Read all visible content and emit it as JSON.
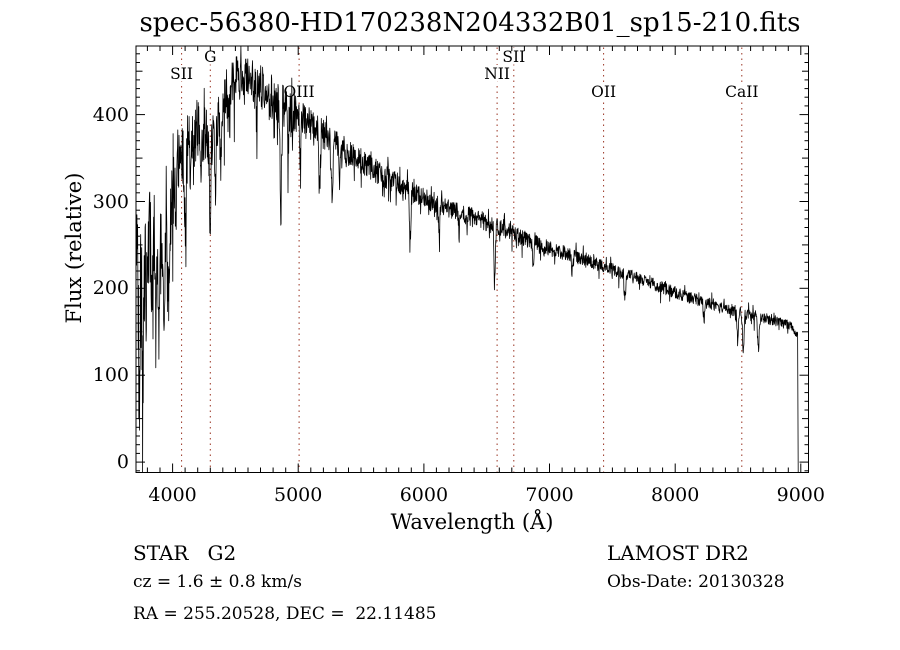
{
  "chart_data": {
    "type": "line",
    "title": "spec-56380-HD170238N204332B01_sp15-210.fits",
    "xlabel": "Wavelength (Å)",
    "ylabel": "Flux (relative)",
    "xlim": [
      3709,
      9061
    ],
    "ylim": [
      -12,
      479
    ],
    "grid": false,
    "legend": "none",
    "x_ticks": {
      "major": [
        4000,
        5000,
        6000,
        7000,
        8000,
        9000
      ],
      "minor_step": 100,
      "labels": [
        "4000",
        "5000",
        "6000",
        "7000",
        "8000",
        "9000"
      ]
    },
    "y_ticks": {
      "major": [
        0,
        100,
        200,
        300,
        400
      ],
      "mid_step": 50,
      "minor_step": 10,
      "labels": [
        "0",
        "100",
        "200",
        "300",
        "400"
      ]
    },
    "series": [
      {
        "name": "spectrum",
        "color": "#000000"
      }
    ],
    "line_markers": [
      {
        "label": "SII",
        "wavelength": 4072,
        "row": 1
      },
      {
        "label": "G",
        "wavelength": 4300,
        "row": 0
      },
      {
        "label": "OIII",
        "wavelength": 5007,
        "row": 2
      },
      {
        "label": "NII",
        "wavelength": 6583,
        "row": 1
      },
      {
        "label": "SII",
        "wavelength": 6716,
        "row": 0
      },
      {
        "label": "OII",
        "wavelength": 7430,
        "row": 2
      },
      {
        "label": "CaII",
        "wavelength": 8530,
        "row": 2
      }
    ],
    "spectrum": {
      "sample_step": 2.5,
      "seed": 20130328,
      "cutoff_wavelength": 8976,
      "continuum": [
        [
          3709,
          238
        ],
        [
          3722,
          212
        ],
        [
          3738,
          198
        ],
        [
          3755,
          205
        ],
        [
          3775,
          215
        ],
        [
          3800,
          242
        ],
        [
          3825,
          260
        ],
        [
          3850,
          268
        ],
        [
          3875,
          262
        ],
        [
          3900,
          258
        ],
        [
          3930,
          265
        ],
        [
          3960,
          275
        ],
        [
          3990,
          300
        ],
        [
          4020,
          328
        ],
        [
          4050,
          348
        ],
        [
          4080,
          352
        ],
        [
          4110,
          360
        ],
        [
          4140,
          370
        ],
        [
          4170,
          376
        ],
        [
          4200,
          379
        ],
        [
          4240,
          377
        ],
        [
          4280,
          381
        ],
        [
          4320,
          390
        ],
        [
          4360,
          400
        ],
        [
          4400,
          408
        ],
        [
          4440,
          424
        ],
        [
          4480,
          438
        ],
        [
          4520,
          447
        ],
        [
          4560,
          446
        ],
        [
          4610,
          441
        ],
        [
          4660,
          436
        ],
        [
          4710,
          431
        ],
        [
          4760,
          423
        ],
        [
          4810,
          417
        ],
        [
          4870,
          411
        ],
        [
          4930,
          405
        ],
        [
          4990,
          401
        ],
        [
          5050,
          393
        ],
        [
          5110,
          386
        ],
        [
          5170,
          380
        ],
        [
          5230,
          374
        ],
        [
          5290,
          367
        ],
        [
          5360,
          361
        ],
        [
          5430,
          353
        ],
        [
          5510,
          345
        ],
        [
          5590,
          338
        ],
        [
          5670,
          330
        ],
        [
          5750,
          323
        ],
        [
          5830,
          317
        ],
        [
          5910,
          310
        ],
        [
          6010,
          304
        ],
        [
          6110,
          297
        ],
        [
          6210,
          292
        ],
        [
          6310,
          286
        ],
        [
          6410,
          281
        ],
        [
          6510,
          275
        ],
        [
          6610,
          269
        ],
        [
          6710,
          263
        ],
        [
          6810,
          257
        ],
        [
          6910,
          251
        ],
        [
          7010,
          246
        ],
        [
          7110,
          241
        ],
        [
          7210,
          236
        ],
        [
          7310,
          231
        ],
        [
          7410,
          226
        ],
        [
          7510,
          221
        ],
        [
          7610,
          216
        ],
        [
          7710,
          211
        ],
        [
          7810,
          206
        ],
        [
          7910,
          200
        ],
        [
          8010,
          195
        ],
        [
          8110,
          190
        ],
        [
          8210,
          185
        ],
        [
          8310,
          181
        ],
        [
          8410,
          177
        ],
        [
          8510,
          173
        ],
        [
          8610,
          169
        ],
        [
          8710,
          166
        ],
        [
          8810,
          162
        ],
        [
          8900,
          158
        ],
        [
          8950,
          152
        ],
        [
          8976,
          148
        ]
      ],
      "noise": [
        [
          3709,
          85
        ],
        [
          3760,
          72
        ],
        [
          3820,
          58
        ],
        [
          3880,
          52
        ],
        [
          3950,
          48
        ],
        [
          4020,
          44
        ],
        [
          4100,
          40
        ],
        [
          4200,
          36
        ],
        [
          4300,
          33
        ],
        [
          4400,
          28
        ],
        [
          4500,
          24
        ],
        [
          4620,
          24
        ],
        [
          4720,
          26
        ],
        [
          4820,
          27
        ],
        [
          4920,
          25
        ],
        [
          5020,
          23
        ],
        [
          5120,
          20
        ],
        [
          5260,
          17
        ],
        [
          5400,
          16
        ],
        [
          5600,
          14
        ],
        [
          5800,
          13
        ],
        [
          6000,
          12
        ],
        [
          6200,
          11
        ],
        [
          6400,
          11
        ],
        [
          6600,
          10
        ],
        [
          6800,
          9
        ],
        [
          7000,
          9
        ],
        [
          7300,
          8
        ],
        [
          7600,
          7.5
        ],
        [
          8000,
          7
        ],
        [
          8400,
          7
        ],
        [
          8700,
          6.5
        ],
        [
          8976,
          6
        ]
      ],
      "absorption_lines": [
        [
          3735,
          110,
          4
        ],
        [
          3762,
          150,
          4
        ],
        [
          3798,
          85,
          4
        ],
        [
          3835,
          90,
          5
        ],
        [
          3868,
          70,
          4
        ],
        [
          3890,
          115,
          5
        ],
        [
          3933,
          125,
          6
        ],
        [
          3969,
          110,
          6
        ],
        [
          4026,
          45,
          4
        ],
        [
          4101,
          92,
          6
        ],
        [
          4144,
          50,
          4
        ],
        [
          4227,
          62,
          4
        ],
        [
          4300,
          112,
          7
        ],
        [
          4340,
          92,
          6
        ],
        [
          4383,
          68,
          5
        ],
        [
          4455,
          38,
          4
        ],
        [
          4531,
          34,
          4
        ],
        [
          4668,
          42,
          4
        ],
        [
          4861,
          148,
          5
        ],
        [
          4920,
          52,
          4
        ],
        [
          4957,
          38,
          4
        ],
        [
          5015,
          48,
          4
        ],
        [
          5170,
          66,
          6
        ],
        [
          5270,
          70,
          5
        ],
        [
          5328,
          38,
          4
        ],
        [
          5890,
          54,
          6
        ],
        [
          6122,
          32,
          4
        ],
        [
          6280,
          26,
          4
        ],
        [
          6563,
          68,
          5
        ],
        [
          6870,
          26,
          6
        ],
        [
          7180,
          20,
          6
        ],
        [
          7600,
          28,
          7
        ],
        [
          8230,
          18,
          6
        ],
        [
          8498,
          36,
          5
        ],
        [
          8542,
          46,
          6
        ],
        [
          8662,
          40,
          6
        ]
      ]
    }
  },
  "annotations": {
    "class_line": "STAR   G2",
    "cz_line": "cz = 1.6 ± 0.8 km/s",
    "radec_line": "RA = 255.20528, DEC =  22.11485",
    "survey": "LAMOST DR2",
    "obs_date": "Obs-Date: 20130328"
  },
  "colors": {
    "background": "#ffffff",
    "spectrum": "#000000",
    "marker_line": "#993322",
    "text": "#000000"
  }
}
